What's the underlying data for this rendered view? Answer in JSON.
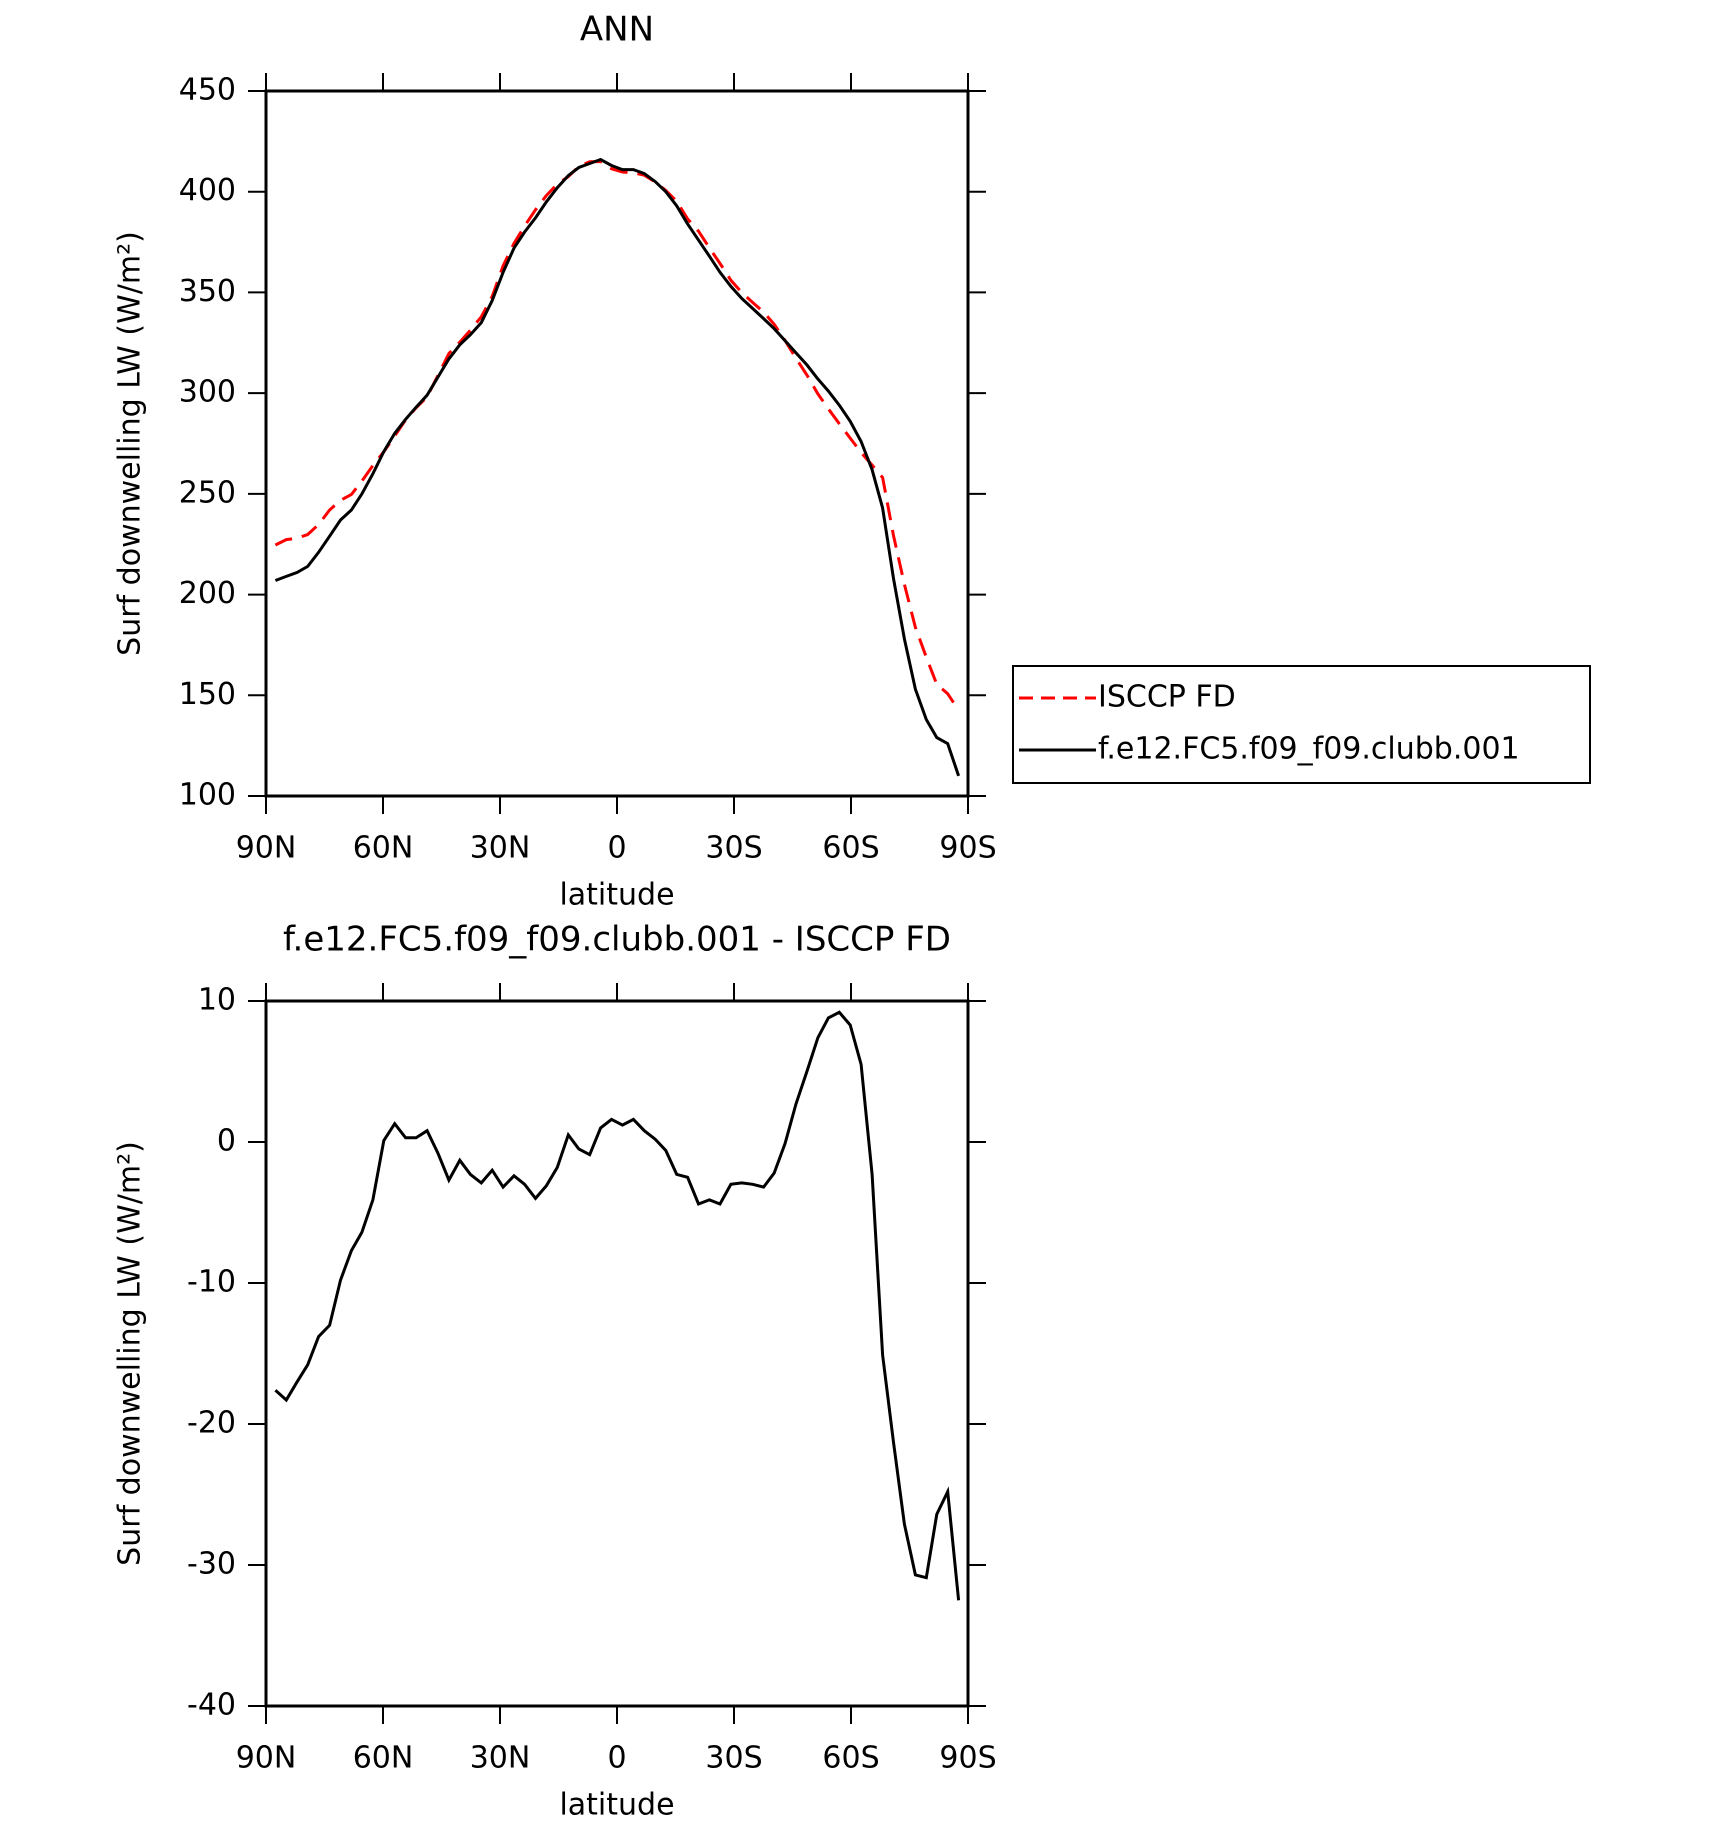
{
  "chart_data": [
    {
      "type": "line",
      "title": "ANN",
      "xlabel": "latitude",
      "ylabel": "Surf downwelling LW (W/m²)",
      "x": [
        87.6,
        84.8,
        82.0,
        79.3,
        76.5,
        73.7,
        70.9,
        68.1,
        65.4,
        62.6,
        59.8,
        57.0,
        54.2,
        51.5,
        48.7,
        45.9,
        43.1,
        40.3,
        37.6,
        34.8,
        32.0,
        29.2,
        26.4,
        23.7,
        20.9,
        18.1,
        15.3,
        12.5,
        9.8,
        7.0,
        4.2,
        1.4,
        -1.4,
        -4.2,
        -7.0,
        -9.8,
        -12.5,
        -15.3,
        -18.1,
        -20.9,
        -23.7,
        -26.4,
        -29.2,
        -32.0,
        -34.8,
        -37.6,
        -40.3,
        -43.1,
        -45.9,
        -48.7,
        -51.5,
        -54.2,
        -57.0,
        -59.8,
        -62.6,
        -65.4,
        -68.1,
        -70.9,
        -73.7,
        -76.5,
        -79.3,
        -82.0,
        -84.8,
        -87.6
      ],
      "series": [
        {
          "name": "ISCCP FD",
          "color": "#ff0000",
          "line_style": "dashed",
          "values": [
            224.6,
            227.3,
            228,
            229.8,
            234.8,
            242,
            246.8,
            249.7,
            256.4,
            264.1,
            270.9,
            278.7,
            286.7,
            292.7,
            298.2,
            308.8,
            319.7,
            325.3,
            331.3,
            337.9,
            348,
            363.2,
            374.4,
            383,
            391,
            398.1,
            403.8,
            407.5,
            412.5,
            414.9,
            415,
            411.4,
            409.8,
            409.4,
            408.2,
            404.8,
            400.6,
            395.3,
            386.5,
            380.4,
            372.1,
            364.4,
            356,
            349.9,
            345,
            340.2,
            334.2,
            326.1,
            317.3,
            309,
            299.6,
            292.2,
            284.8,
            277.7,
            270.5,
            264.3,
            258.1,
            229.3,
            205.1,
            183.7,
            168.9,
            155.4,
            150.8,
            142.5
          ]
        },
        {
          "name": "f.e12.FC5.f09_f09.clubb.001",
          "color": "#000000",
          "line_style": "solid",
          "values": [
            207,
            209,
            211,
            214,
            221,
            229,
            237,
            242,
            250,
            260,
            271,
            280,
            287,
            293,
            299,
            308,
            317,
            324,
            329,
            335,
            346,
            360,
            372,
            380,
            387,
            395,
            402,
            408,
            412,
            414,
            416,
            413,
            411,
            411,
            409,
            405,
            400,
            393,
            384,
            376,
            368,
            360,
            353,
            347,
            342,
            337,
            332,
            326,
            320,
            314,
            307,
            301,
            294,
            286,
            276,
            262,
            243,
            208,
            178,
            153,
            138,
            129,
            126,
            110
          ]
        }
      ],
      "xlim": [
        90,
        -90
      ],
      "xticks": [
        {
          "value": 90,
          "label": "90N"
        },
        {
          "value": 60,
          "label": "60N"
        },
        {
          "value": 30,
          "label": "30N"
        },
        0,
        {
          "value": -30,
          "label": "30S"
        },
        {
          "value": -60,
          "label": "60S"
        },
        {
          "value": -90,
          "label": "90S"
        }
      ],
      "ylim": [
        100,
        450
      ],
      "yticks": [
        100,
        150,
        200,
        250,
        300,
        350,
        400,
        450
      ],
      "legend": "outside right"
    },
    {
      "type": "line",
      "title": "f.e12.FC5.f09_f09.clubb.001 - ISCCP FD",
      "xlabel": "latitude",
      "ylabel": "Surf downwelling LW (W/m²)",
      "x": [
        87.6,
        84.8,
        82.0,
        79.3,
        76.5,
        73.7,
        70.9,
        68.1,
        65.4,
        62.6,
        59.8,
        57.0,
        54.2,
        51.5,
        48.7,
        45.9,
        43.1,
        40.3,
        37.6,
        34.8,
        32.0,
        29.2,
        26.4,
        23.7,
        20.9,
        18.1,
        15.3,
        12.5,
        9.8,
        7.0,
        4.2,
        1.4,
        -1.4,
        -4.2,
        -7.0,
        -9.8,
        -12.5,
        -15.3,
        -18.1,
        -20.9,
        -23.7,
        -26.4,
        -29.2,
        -32.0,
        -34.8,
        -37.6,
        -40.3,
        -43.1,
        -45.9,
        -48.7,
        -51.5,
        -54.2,
        -57.0,
        -59.8,
        -62.6,
        -65.4,
        -68.1,
        -70.9,
        -73.7,
        -76.5,
        -79.3,
        -82.0,
        -84.8,
        -87.6
      ],
      "values": [
        -17.6,
        -18.3,
        -17.0,
        -15.8,
        -13.8,
        -13.0,
        -9.8,
        -7.7,
        -6.4,
        -4.1,
        0.1,
        1.3,
        0.3,
        0.3,
        0.8,
        -0.8,
        -2.7,
        -1.3,
        -2.3,
        -2.9,
        -2.0,
        -3.2,
        -2.4,
        -3.0,
        -4.0,
        -3.1,
        -1.8,
        0.5,
        -0.5,
        -0.9,
        1.0,
        1.6,
        1.2,
        1.6,
        0.8,
        0.2,
        -0.6,
        -2.3,
        -2.5,
        -4.4,
        -4.1,
        -4.4,
        -3.0,
        -2.9,
        -3.0,
        -3.2,
        -2.2,
        -0.1,
        2.7,
        5.0,
        7.4,
        8.8,
        9.2,
        8.3,
        5.5,
        -2.3,
        -15.1,
        -21.3,
        -27.1,
        -30.7,
        -30.9,
        -26.4,
        -24.8,
        -32.5
      ],
      "color": "#000000",
      "xlim": [
        90,
        -90
      ],
      "xticks": [
        {
          "value": 90,
          "label": "90N"
        },
        {
          "value": 60,
          "label": "60N"
        },
        {
          "value": 30,
          "label": "30N"
        },
        0,
        {
          "value": -30,
          "label": "30S"
        },
        {
          "value": -60,
          "label": "60S"
        },
        {
          "value": -90,
          "label": "90S"
        }
      ],
      "ylim": [
        -40,
        10
      ],
      "yticks": [
        -40,
        -30,
        -20,
        -10,
        0,
        10
      ]
    }
  ]
}
